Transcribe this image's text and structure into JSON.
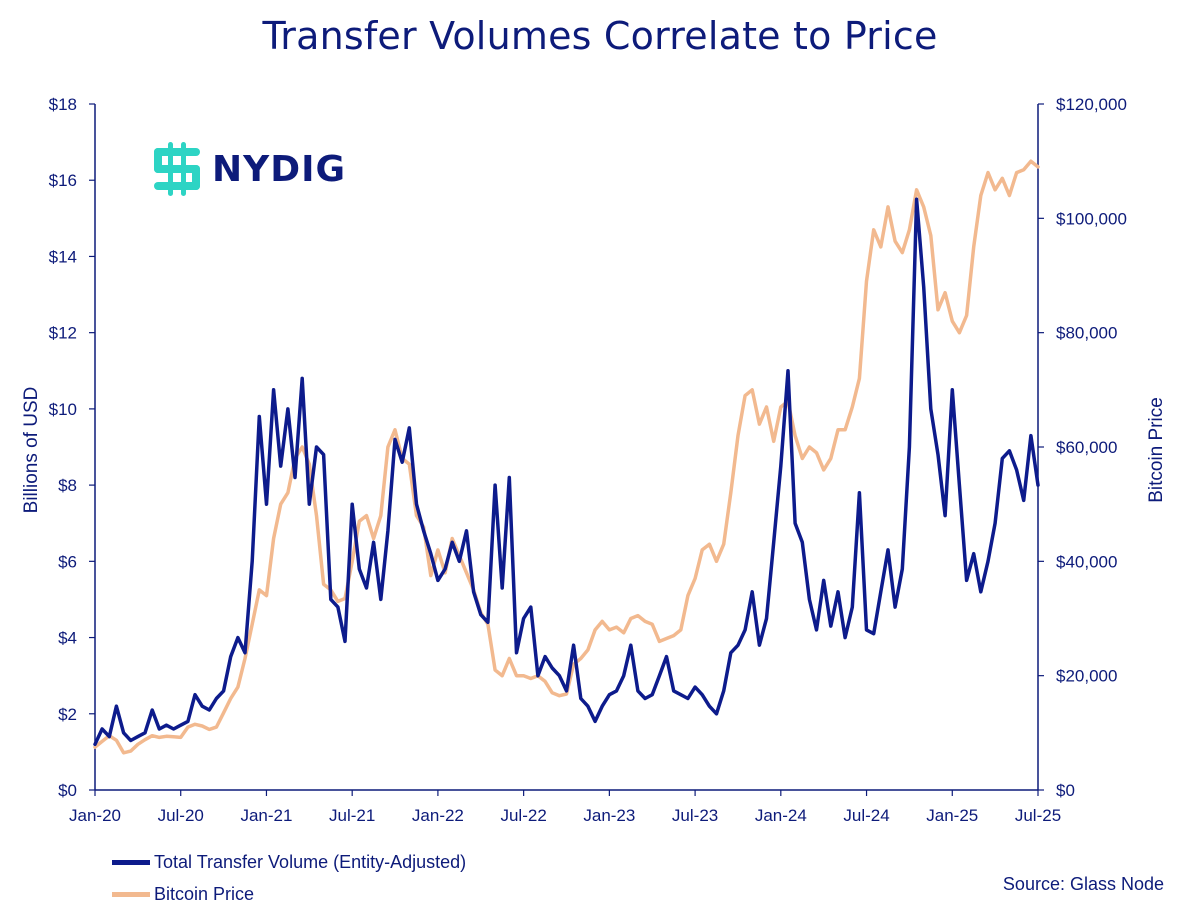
{
  "title": "Transfer Volumes Correlate to Price",
  "logo": {
    "text": "NYDIG",
    "color": "#2dd4c4"
  },
  "source": "Source: Glass Node",
  "colors": {
    "volume": "#0d1b8c",
    "price": "#f2b98f",
    "axis": "#0d1b7a"
  },
  "chart_data": {
    "type": "line",
    "title": "Transfer Volumes Correlate to Price",
    "ylabel": "Billions of USD",
    "y2label": "Bitcoin Price",
    "ylim": [
      0,
      18
    ],
    "y2lim": [
      0,
      120000
    ],
    "xlim": [
      0,
      66
    ],
    "x_ticks": [
      {
        "label": "Jan-20",
        "x": 0
      },
      {
        "label": "Jul-20",
        "x": 6
      },
      {
        "label": "Jan-21",
        "x": 12
      },
      {
        "label": "Jul-21",
        "x": 18
      },
      {
        "label": "Jan-22",
        "x": 24
      },
      {
        "label": "Jul-22",
        "x": 30
      },
      {
        "label": "Jan-23",
        "x": 36
      },
      {
        "label": "Jul-23",
        "x": 42
      },
      {
        "label": "Jan-24",
        "x": 48
      },
      {
        "label": "Jul-24",
        "x": 54
      },
      {
        "label": "Jan-25",
        "x": 60
      },
      {
        "label": "Jul-25",
        "x": 66
      }
    ],
    "y_ticks": [
      "$0",
      "$2",
      "$4",
      "$6",
      "$8",
      "$10",
      "$12",
      "$14",
      "$16",
      "$18"
    ],
    "y_tick_values": [
      0,
      2,
      4,
      6,
      8,
      10,
      12,
      14,
      16,
      18
    ],
    "y2_ticks": [
      "$0",
      "$20,000",
      "$40,000",
      "$60,000",
      "$80,000",
      "$100,000",
      "$120,000"
    ],
    "y2_tick_values": [
      0,
      20000,
      40000,
      60000,
      80000,
      100000,
      120000
    ],
    "legend": [
      "Total Transfer Volume (Entity-Adjusted)",
      "Bitcoin Price"
    ],
    "series": [
      {
        "name": "Total Transfer Volume (Entity-Adjusted)",
        "axis": "left",
        "points": [
          [
            0,
            1.2
          ],
          [
            0.5,
            1.6
          ],
          [
            1,
            1.4
          ],
          [
            1.5,
            2.2
          ],
          [
            2,
            1.5
          ],
          [
            2.5,
            1.3
          ],
          [
            3,
            1.4
          ],
          [
            3.5,
            1.5
          ],
          [
            4,
            2.1
          ],
          [
            4.5,
            1.6
          ],
          [
            5,
            1.7
          ],
          [
            5.5,
            1.6
          ],
          [
            6,
            1.7
          ],
          [
            6.5,
            1.8
          ],
          [
            7,
            2.5
          ],
          [
            7.5,
            2.2
          ],
          [
            8,
            2.1
          ],
          [
            8.5,
            2.4
          ],
          [
            9,
            2.6
          ],
          [
            9.5,
            3.5
          ],
          [
            10,
            4.0
          ],
          [
            10.5,
            3.6
          ],
          [
            11,
            6.0
          ],
          [
            11.5,
            9.8
          ],
          [
            12,
            7.5
          ],
          [
            12.5,
            10.5
          ],
          [
            13,
            8.5
          ],
          [
            13.5,
            10.0
          ],
          [
            14,
            8.2
          ],
          [
            14.5,
            10.8
          ],
          [
            15,
            7.5
          ],
          [
            15.5,
            9.0
          ],
          [
            16,
            8.8
          ],
          [
            16.5,
            5.0
          ],
          [
            17,
            4.8
          ],
          [
            17.5,
            3.9
          ],
          [
            18,
            7.5
          ],
          [
            18.5,
            5.8
          ],
          [
            19,
            5.3
          ],
          [
            19.5,
            6.5
          ],
          [
            20,
            5.0
          ],
          [
            20.5,
            6.8
          ],
          [
            21,
            9.2
          ],
          [
            21.5,
            8.6
          ],
          [
            22,
            9.5
          ],
          [
            22.5,
            7.5
          ],
          [
            23,
            6.8
          ],
          [
            23.5,
            6.2
          ],
          [
            24,
            5.5
          ],
          [
            24.5,
            5.8
          ],
          [
            25,
            6.5
          ],
          [
            25.5,
            6.0
          ],
          [
            26,
            6.8
          ],
          [
            26.5,
            5.2
          ],
          [
            27,
            4.6
          ],
          [
            27.5,
            4.4
          ],
          [
            28,
            8.0
          ],
          [
            28.5,
            5.3
          ],
          [
            29,
            8.2
          ],
          [
            29.5,
            3.6
          ],
          [
            30,
            4.5
          ],
          [
            30.5,
            4.8
          ],
          [
            31,
            3.0
          ],
          [
            31.5,
            3.5
          ],
          [
            32,
            3.2
          ],
          [
            32.5,
            3.0
          ],
          [
            33,
            2.6
          ],
          [
            33.5,
            3.8
          ],
          [
            34,
            2.4
          ],
          [
            34.5,
            2.2
          ],
          [
            35,
            1.8
          ],
          [
            35.5,
            2.2
          ],
          [
            36,
            2.5
          ],
          [
            36.5,
            2.6
          ],
          [
            37,
            3.0
          ],
          [
            37.5,
            3.8
          ],
          [
            38,
            2.6
          ],
          [
            38.5,
            2.4
          ],
          [
            39,
            2.5
          ],
          [
            39.5,
            3.0
          ],
          [
            40,
            3.5
          ],
          [
            40.5,
            2.6
          ],
          [
            41,
            2.5
          ],
          [
            41.5,
            2.4
          ],
          [
            42,
            2.7
          ],
          [
            42.5,
            2.5
          ],
          [
            43,
            2.2
          ],
          [
            43.5,
            2.0
          ],
          [
            44,
            2.6
          ],
          [
            44.5,
            3.6
          ],
          [
            45,
            3.8
          ],
          [
            45.5,
            4.2
          ],
          [
            46,
            5.2
          ],
          [
            46.5,
            3.8
          ],
          [
            47,
            4.5
          ],
          [
            47.5,
            6.5
          ],
          [
            48,
            8.5
          ],
          [
            48.5,
            11.0
          ],
          [
            49,
            7.0
          ],
          [
            49.5,
            6.5
          ],
          [
            50,
            5.0
          ],
          [
            50.5,
            4.2
          ],
          [
            51,
            5.5
          ],
          [
            51.5,
            4.3
          ],
          [
            52,
            5.2
          ],
          [
            52.5,
            4.0
          ],
          [
            53,
            4.8
          ],
          [
            53.5,
            7.8
          ],
          [
            54,
            4.2
          ],
          [
            54.5,
            4.1
          ],
          [
            55,
            5.2
          ],
          [
            55.5,
            6.3
          ],
          [
            56,
            4.8
          ],
          [
            56.5,
            5.8
          ],
          [
            57,
            9.0
          ],
          [
            57.5,
            15.5
          ],
          [
            58,
            13.2
          ],
          [
            58.5,
            10.0
          ],
          [
            59,
            8.8
          ],
          [
            59.5,
            7.2
          ],
          [
            60,
            10.5
          ],
          [
            60.5,
            8.0
          ],
          [
            61,
            5.5
          ],
          [
            61.5,
            6.2
          ],
          [
            62,
            5.2
          ],
          [
            62.5,
            6.0
          ],
          [
            63,
            7.0
          ],
          [
            63.5,
            8.7
          ],
          [
            64,
            8.9
          ],
          [
            64.5,
            8.4
          ],
          [
            65,
            7.6
          ],
          [
            65.5,
            9.3
          ],
          [
            66,
            8.0
          ]
        ]
      },
      {
        "name": "Bitcoin Price",
        "axis": "right",
        "points": [
          [
            0,
            7500
          ],
          [
            0.5,
            8500
          ],
          [
            1,
            9500
          ],
          [
            1.5,
            8700
          ],
          [
            2,
            6500
          ],
          [
            2.5,
            6800
          ],
          [
            3,
            8000
          ],
          [
            3.5,
            8800
          ],
          [
            4,
            9500
          ],
          [
            4.5,
            9200
          ],
          [
            5,
            9400
          ],
          [
            5.5,
            9300
          ],
          [
            6,
            9200
          ],
          [
            6.5,
            11000
          ],
          [
            7,
            11500
          ],
          [
            7.5,
            11200
          ],
          [
            8,
            10600
          ],
          [
            8.5,
            11000
          ],
          [
            9,
            13500
          ],
          [
            9.5,
            16000
          ],
          [
            10,
            18000
          ],
          [
            10.5,
            23000
          ],
          [
            11,
            29000
          ],
          [
            11.5,
            35000
          ],
          [
            12,
            34000
          ],
          [
            12.5,
            44000
          ],
          [
            13,
            50000
          ],
          [
            13.5,
            52000
          ],
          [
            14,
            58000
          ],
          [
            14.5,
            60000
          ],
          [
            15,
            57000
          ],
          [
            15.5,
            48000
          ],
          [
            16,
            36000
          ],
          [
            16.5,
            35000
          ],
          [
            17,
            33000
          ],
          [
            17.5,
            33500
          ],
          [
            18,
            40000
          ],
          [
            18.5,
            47000
          ],
          [
            19,
            48000
          ],
          [
            19.5,
            44000
          ],
          [
            20,
            48000
          ],
          [
            20.5,
            60000
          ],
          [
            21,
            63000
          ],
          [
            21.5,
            58000
          ],
          [
            22,
            57000
          ],
          [
            22.5,
            48000
          ],
          [
            23,
            46000
          ],
          [
            23.5,
            37500
          ],
          [
            24,
            42000
          ],
          [
            24.5,
            38000
          ],
          [
            25,
            44000
          ],
          [
            25.5,
            41000
          ],
          [
            26,
            38000
          ],
          [
            26.5,
            35000
          ],
          [
            27,
            31000
          ],
          [
            27.5,
            29000
          ],
          [
            28,
            21000
          ],
          [
            28.5,
            20000
          ],
          [
            29,
            23000
          ],
          [
            29.5,
            20000
          ],
          [
            30,
            20000
          ],
          [
            30.5,
            19500
          ],
          [
            31,
            20000
          ],
          [
            31.5,
            19000
          ],
          [
            32,
            17000
          ],
          [
            32.5,
            16500
          ],
          [
            33,
            16800
          ],
          [
            33.5,
            22000
          ],
          [
            34,
            23000
          ],
          [
            34.5,
            24500
          ],
          [
            35,
            28000
          ],
          [
            35.5,
            29500
          ],
          [
            36,
            28000
          ],
          [
            36.5,
            28500
          ],
          [
            37,
            27500
          ],
          [
            37.5,
            30000
          ],
          [
            38,
            30500
          ],
          [
            38.5,
            29500
          ],
          [
            39,
            29000
          ],
          [
            39.5,
            26000
          ],
          [
            40,
            26500
          ],
          [
            40.5,
            27000
          ],
          [
            41,
            28000
          ],
          [
            41.5,
            34000
          ],
          [
            42,
            37000
          ],
          [
            42.5,
            42000
          ],
          [
            43,
            43000
          ],
          [
            43.5,
            40000
          ],
          [
            44,
            43000
          ],
          [
            44.5,
            52000
          ],
          [
            45,
            62000
          ],
          [
            45.5,
            69000
          ],
          [
            46,
            70000
          ],
          [
            46.5,
            64000
          ],
          [
            47,
            67000
          ],
          [
            47.5,
            61000
          ],
          [
            48,
            67000
          ],
          [
            48.5,
            68000
          ],
          [
            49,
            62000
          ],
          [
            49.5,
            58000
          ],
          [
            50,
            60000
          ],
          [
            50.5,
            59000
          ],
          [
            51,
            56000
          ],
          [
            51.5,
            58000
          ],
          [
            52,
            63000
          ],
          [
            52.5,
            63000
          ],
          [
            53,
            67000
          ],
          [
            53.5,
            72000
          ],
          [
            54,
            89000
          ],
          [
            54.5,
            98000
          ],
          [
            55,
            95000
          ],
          [
            55.5,
            102000
          ],
          [
            56,
            96000
          ],
          [
            56.5,
            94000
          ],
          [
            57,
            98000
          ],
          [
            57.5,
            105000
          ],
          [
            58,
            102000
          ],
          [
            58.5,
            97000
          ],
          [
            59,
            84000
          ],
          [
            59.5,
            87000
          ],
          [
            60,
            82000
          ],
          [
            60.5,
            80000
          ],
          [
            61,
            83000
          ],
          [
            61.5,
            95000
          ],
          [
            62,
            104000
          ],
          [
            62.5,
            108000
          ],
          [
            63,
            105000
          ],
          [
            63.5,
            107000
          ],
          [
            64,
            104000
          ],
          [
            64.5,
            108000
          ],
          [
            65,
            108500
          ],
          [
            65.5,
            110000
          ],
          [
            66,
            109000
          ]
        ]
      }
    ]
  }
}
